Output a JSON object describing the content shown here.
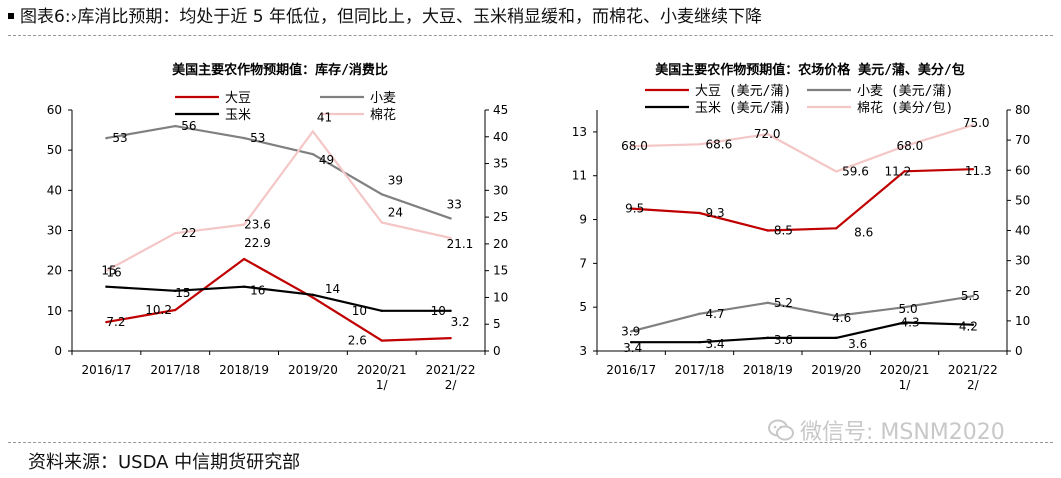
{
  "header": {
    "title": "图表6:›库消比预期：均处于近 5 年低位，但同比上，大豆、玉米稍显缓和，而棉花、小麦继续下降"
  },
  "footer": {
    "source": "资料来源：USDA 中信期货研究部"
  },
  "watermark": {
    "text": "微信号: MSNM2020",
    "icon": "wechat-icon"
  },
  "chart_data": [
    {
      "type": "line",
      "title": "美国主要农作物预期值：库存/消费比",
      "categories": [
        "2016/17",
        "2017/18",
        "2018/19",
        "2019/20",
        "2020/21 1/",
        "2021/22 2/"
      ],
      "category_lines": [
        [
          "2016/17"
        ],
        [
          "2017/18"
        ],
        [
          "2018/19"
        ],
        [
          "2019/20"
        ],
        [
          "2020/21",
          "1/"
        ],
        [
          "2021/22",
          "2/"
        ]
      ],
      "ylim": [
        0,
        60
      ],
      "yticks": [
        0,
        10,
        20,
        30,
        40,
        50,
        60
      ],
      "y2lim": [
        0,
        45
      ],
      "y2ticks": [
        0,
        5,
        10,
        15,
        20,
        25,
        30,
        35,
        40,
        45
      ],
      "series": [
        {
          "name": "大豆",
          "color": "#c00000",
          "axis": "left",
          "values": [
            7.2,
            10.2,
            22.9,
            13.3,
            2.6,
            3.2
          ],
          "labels": [
            "7.2",
            "10.2",
            "22.9",
            "",
            "2.6",
            "3.2"
          ]
        },
        {
          "name": "小麦",
          "color": "#808080",
          "axis": "left",
          "values": [
            53,
            56,
            53,
            49,
            39,
            33
          ],
          "labels": [
            "53",
            "56",
            "53",
            "49",
            "39",
            "33"
          ]
        },
        {
          "name": "玉米",
          "color": "#000000",
          "axis": "left",
          "values": [
            16,
            15,
            16,
            14,
            10,
            10
          ],
          "labels": [
            "16",
            "15",
            "16",
            "14",
            "10",
            "10"
          ]
        },
        {
          "name": "棉花",
          "color": "#f4c6c6",
          "axis": "right",
          "values": [
            15,
            22,
            23.6,
            41,
            24,
            21.1
          ],
          "labels": [
            "15",
            "22",
            "23.6",
            "41",
            "24",
            "21.1"
          ]
        }
      ]
    },
    {
      "type": "line",
      "title": "美国主要农作物预期值：农场价格 美元/蒲、美分/包",
      "categories": [
        "2016/17",
        "2017/18",
        "2018/19",
        "2019/20",
        "2020/21 1/",
        "2021/22 2/"
      ],
      "category_lines": [
        [
          "2016/17"
        ],
        [
          "2017/18"
        ],
        [
          "2018/19"
        ],
        [
          "2019/20"
        ],
        [
          "2020/21",
          "1/"
        ],
        [
          "2021/22",
          "2/"
        ]
      ],
      "ylim": [
        3,
        14
      ],
      "yticks": [
        3,
        5,
        7,
        9,
        11,
        13
      ],
      "y2lim": [
        0,
        80
      ],
      "y2ticks": [
        0,
        10,
        20,
        30,
        40,
        50,
        60,
        70,
        80
      ],
      "series": [
        {
          "name": "大豆 (美元/蒲)",
          "color": "#c00000",
          "axis": "left",
          "values": [
            9.5,
            9.3,
            8.5,
            8.6,
            11.2,
            11.3
          ],
          "labels": [
            "9.5",
            "9.3",
            "8.5",
            "8.6",
            "11.2",
            "11.3"
          ]
        },
        {
          "name": "小麦 (美元/蒲)",
          "color": "#808080",
          "axis": "left",
          "values": [
            3.9,
            4.7,
            5.2,
            4.6,
            5.0,
            5.5
          ],
          "labels": [
            "3.9",
            "4.7",
            "5.2",
            "4.6",
            "5.0",
            "5.5"
          ]
        },
        {
          "name": "玉米 (美元/蒲)",
          "color": "#000000",
          "axis": "left",
          "values": [
            3.4,
            3.4,
            3.6,
            3.6,
            4.3,
            4.2
          ],
          "labels": [
            "3.4",
            "3.4",
            "3.6",
            "3.6",
            "4.3",
            "4.2"
          ]
        },
        {
          "name": "棉花 (美分/包)",
          "color": "#f4c6c6",
          "axis": "right",
          "values": [
            68.0,
            68.6,
            72.0,
            59.6,
            68.0,
            75.0
          ],
          "labels": [
            "68.0",
            "68.6",
            "72.0",
            "59.6",
            "68.0",
            "75.0"
          ]
        }
      ]
    }
  ]
}
